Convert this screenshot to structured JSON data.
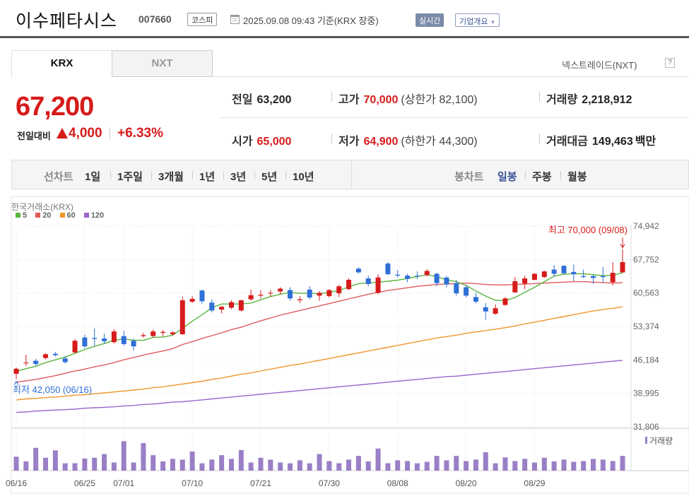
{
  "header": {
    "company": "이수페타시스",
    "code": "007660",
    "market": "코스피",
    "datetime": "2025.09.08 09:43  기준(KRX 장중)",
    "realtime": "실시간",
    "corp_info": "기업개요"
  },
  "tabs": {
    "krx": "KRX",
    "nxt": "NXT"
  },
  "nxt_link": "넥스트레이드(NXT)",
  "help": "?",
  "price": {
    "current": "67,200",
    "change_label": "전일대비",
    "change": "4,000",
    "change_pct": "+6.33%"
  },
  "stats": {
    "prev_label": "전일",
    "prev": "63,200",
    "high_label": "고가",
    "high": "70,000",
    "upper_limit": "(상한가 82,100)",
    "volume_label": "거래량",
    "volume": "2,218,912",
    "open_label": "시가",
    "open": "65,000",
    "low_label": "저가",
    "low": "64,900",
    "lower_limit": "(하한가 44,300)",
    "amount_label": "거래대금",
    "amount": "149,463",
    "amount_unit": "백만"
  },
  "period": {
    "line_label": "선차트",
    "line_items": [
      "1일",
      "1주일",
      "3개월",
      "1년",
      "3년",
      "5년",
      "10년"
    ],
    "candle_label": "봉차트",
    "candle_items": [
      "일봉",
      "주봉",
      "월봉"
    ],
    "selected": "일봉"
  },
  "colors": {
    "up": "#d61b1b",
    "down": "#2f6fd6",
    "ma5": "#5ab540",
    "ma20": "#e05a5a",
    "ma60": "#f0952a",
    "ma120": "#9b66cc",
    "volume": "#9a7fc6"
  },
  "chart_data": {
    "type": "candlestick",
    "title": "한국거래소(KRX)",
    "legend": [
      {
        "label": "5",
        "color": "#5ab540"
      },
      {
        "label": "20",
        "color": "#e05a5a"
      },
      {
        "label": "60",
        "color": "#f0952a"
      },
      {
        "label": "120",
        "color": "#9b66cc"
      }
    ],
    "y_ticks": [
      "74,942",
      "67,752",
      "60,563",
      "53,374",
      "46,184",
      "38,995",
      "31,806"
    ],
    "ylim": [
      31806,
      74942
    ],
    "x_tick_labels": [
      {
        "label": "06/16",
        "index": 0
      },
      {
        "label": "06/25",
        "index": 7
      },
      {
        "label": "07/01",
        "index": 11
      },
      {
        "label": "07/10",
        "index": 18
      },
      {
        "label": "07/21",
        "index": 25
      },
      {
        "label": "07/30",
        "index": 32
      },
      {
        "label": "08/08",
        "index": 39
      },
      {
        "label": "08/20",
        "index": 46
      },
      {
        "label": "08/29",
        "index": 53
      }
    ],
    "high_annotation": "최고 70,000 (09/08)",
    "low_annotation": "최저 42,050 (06/16)",
    "volume_label": "거래량",
    "candles": [
      {
        "o": 43200,
        "h": 44500,
        "l": 42050,
        "c": 44300
      },
      {
        "o": 45500,
        "h": 47300,
        "l": 44900,
        "c": 45600
      },
      {
        "o": 46000,
        "h": 46400,
        "l": 44900,
        "c": 45300
      },
      {
        "o": 46600,
        "h": 47600,
        "l": 46300,
        "c": 47400
      },
      {
        "o": 47500,
        "h": 47900,
        "l": 46900,
        "c": 47200
      },
      {
        "o": 46500,
        "h": 47000,
        "l": 45400,
        "c": 45700
      },
      {
        "o": 47800,
        "h": 50700,
        "l": 47500,
        "c": 50300
      },
      {
        "o": 51000,
        "h": 51600,
        "l": 48700,
        "c": 49100
      },
      {
        "o": 50900,
        "h": 52900,
        "l": 49200,
        "c": 50700
      },
      {
        "o": 50800,
        "h": 51800,
        "l": 49600,
        "c": 50200
      },
      {
        "o": 50000,
        "h": 52800,
        "l": 49700,
        "c": 52300
      },
      {
        "o": 51300,
        "h": 52400,
        "l": 49300,
        "c": 49600
      },
      {
        "o": 50300,
        "h": 50800,
        "l": 48200,
        "c": 49100
      },
      {
        "o": 51300,
        "h": 52000,
        "l": 51000,
        "c": 51500
      },
      {
        "o": 51300,
        "h": 52700,
        "l": 51100,
        "c": 52300
      },
      {
        "o": 52000,
        "h": 52600,
        "l": 51300,
        "c": 52200
      },
      {
        "o": 51700,
        "h": 52300,
        "l": 51400,
        "c": 52100
      },
      {
        "o": 51700,
        "h": 59800,
        "l": 51600,
        "c": 59000
      },
      {
        "o": 58700,
        "h": 59900,
        "l": 58400,
        "c": 59300
      },
      {
        "o": 61100,
        "h": 61300,
        "l": 58300,
        "c": 58800
      },
      {
        "o": 58500,
        "h": 59200,
        "l": 56400,
        "c": 56800
      },
      {
        "o": 57000,
        "h": 57800,
        "l": 56200,
        "c": 57600
      },
      {
        "o": 57400,
        "h": 59000,
        "l": 57100,
        "c": 58600
      },
      {
        "o": 56800,
        "h": 59100,
        "l": 56600,
        "c": 59000
      },
      {
        "o": 59200,
        "h": 61300,
        "l": 58900,
        "c": 60100
      },
      {
        "o": 60000,
        "h": 61200,
        "l": 59400,
        "c": 60200
      },
      {
        "o": 60500,
        "h": 61200,
        "l": 59800,
        "c": 60600
      },
      {
        "o": 60900,
        "h": 61800,
        "l": 60200,
        "c": 61500
      },
      {
        "o": 61200,
        "h": 61800,
        "l": 58900,
        "c": 59400
      },
      {
        "o": 59000,
        "h": 59900,
        "l": 58400,
        "c": 59200
      },
      {
        "o": 61300,
        "h": 62000,
        "l": 59200,
        "c": 59600
      },
      {
        "o": 60000,
        "h": 61000,
        "l": 58900,
        "c": 60600
      },
      {
        "o": 59900,
        "h": 61400,
        "l": 59600,
        "c": 61200
      },
      {
        "o": 60500,
        "h": 62300,
        "l": 59700,
        "c": 62000
      },
      {
        "o": 61400,
        "h": 63700,
        "l": 61200,
        "c": 63400
      },
      {
        "o": 65800,
        "h": 66100,
        "l": 64700,
        "c": 65000
      },
      {
        "o": 63700,
        "h": 64300,
        "l": 62000,
        "c": 62500
      },
      {
        "o": 60600,
        "h": 64600,
        "l": 60300,
        "c": 63900
      },
      {
        "o": 66900,
        "h": 67200,
        "l": 64500,
        "c": 64600
      },
      {
        "o": 64500,
        "h": 65500,
        "l": 63900,
        "c": 64300
      },
      {
        "o": 64300,
        "h": 64700,
        "l": 62900,
        "c": 63600
      },
      {
        "o": 64300,
        "h": 65200,
        "l": 63600,
        "c": 64200
      },
      {
        "o": 64400,
        "h": 65700,
        "l": 64100,
        "c": 65300
      },
      {
        "o": 64700,
        "h": 64900,
        "l": 62000,
        "c": 62700
      },
      {
        "o": 63900,
        "h": 64200,
        "l": 61800,
        "c": 62400
      },
      {
        "o": 62700,
        "h": 63400,
        "l": 60000,
        "c": 60500
      },
      {
        "o": 61800,
        "h": 62300,
        "l": 59600,
        "c": 60000
      },
      {
        "o": 59700,
        "h": 60600,
        "l": 58300,
        "c": 58700
      },
      {
        "o": 57500,
        "h": 58400,
        "l": 54800,
        "c": 56600
      },
      {
        "o": 56100,
        "h": 58100,
        "l": 55900,
        "c": 57300
      },
      {
        "o": 58000,
        "h": 59700,
        "l": 57800,
        "c": 59400
      },
      {
        "o": 60700,
        "h": 64000,
        "l": 60600,
        "c": 63100
      },
      {
        "o": 62600,
        "h": 64300,
        "l": 61400,
        "c": 63700
      },
      {
        "o": 63400,
        "h": 64800,
        "l": 63300,
        "c": 64700
      },
      {
        "o": 64000,
        "h": 65400,
        "l": 63800,
        "c": 65200
      },
      {
        "o": 65600,
        "h": 66600,
        "l": 64000,
        "c": 64700
      },
      {
        "o": 66400,
        "h": 66600,
        "l": 64500,
        "c": 64800
      },
      {
        "o": 65100,
        "h": 66700,
        "l": 63100,
        "c": 64600
      },
      {
        "o": 64200,
        "h": 65600,
        "l": 63800,
        "c": 64000
      },
      {
        "o": 64200,
        "h": 64400,
        "l": 62500,
        "c": 63800
      },
      {
        "o": 64200,
        "h": 66200,
        "l": 62700,
        "c": 64000
      },
      {
        "o": 62900,
        "h": 67200,
        "l": 62200,
        "c": 64900
      },
      {
        "o": 65000,
        "h": 70000,
        "l": 64900,
        "c": 67200
      }
    ],
    "ma5": [
      43700,
      44300,
      44800,
      45600,
      46200,
      46800,
      47600,
      48400,
      49100,
      49700,
      50400,
      50700,
      50400,
      50400,
      51000,
      51100,
      51500,
      53000,
      54500,
      55900,
      57400,
      58200,
      58200,
      58200,
      58400,
      59100,
      59800,
      60300,
      60700,
      60500,
      60500,
      60400,
      60700,
      61100,
      61900,
      62600,
      62700,
      62900,
      63100,
      63300,
      63700,
      64100,
      64500,
      64100,
      63400,
      63000,
      62200,
      61000,
      59900,
      59000,
      58900,
      59600,
      60700,
      61800,
      63000,
      64200,
      64600,
      64700,
      64700,
      64500,
      64300,
      64400,
      64900
    ],
    "ma20": [
      41400,
      41700,
      42000,
      42400,
      42800,
      43300,
      43800,
      44200,
      44700,
      45100,
      45600,
      46200,
      46700,
      47200,
      47700,
      48100,
      48600,
      49500,
      50100,
      50800,
      51400,
      52000,
      52700,
      53200,
      53900,
      54600,
      55200,
      55800,
      56300,
      56800,
      57300,
      57800,
      58300,
      58800,
      59300,
      59800,
      60300,
      60700,
      61100,
      61400,
      61700,
      62000,
      62200,
      62400,
      62500,
      62600,
      62700,
      62600,
      62400,
      62300,
      62300,
      62400,
      62500,
      62600,
      62700,
      62800,
      62900,
      63000,
      63000,
      62900,
      62800,
      62700,
      62800
    ],
    "ma60": [
      37600,
      37800,
      37900,
      38100,
      38200,
      38400,
      38600,
      38700,
      38900,
      39100,
      39300,
      39500,
      39700,
      39900,
      40200,
      40400,
      40700,
      41000,
      41300,
      41600,
      42000,
      42300,
      42700,
      43100,
      43400,
      43800,
      44200,
      44600,
      45000,
      45300,
      45700,
      46100,
      46500,
      46900,
      47300,
      47700,
      48100,
      48500,
      48900,
      49300,
      49700,
      50100,
      50500,
      50900,
      51200,
      51500,
      51900,
      52200,
      52500,
      52800,
      53100,
      53500,
      53900,
      54300,
      54700,
      55100,
      55500,
      55900,
      56300,
      56700,
      57000,
      57300,
      57600
    ],
    "ma120": [
      34900,
      35000,
      35200,
      35300,
      35400,
      35500,
      35600,
      35800,
      35900,
      36000,
      36100,
      36300,
      36400,
      36600,
      36700,
      36900,
      37100,
      37200,
      37400,
      37600,
      37800,
      38000,
      38200,
      38400,
      38600,
      38800,
      39000,
      39200,
      39400,
      39600,
      39800,
      40000,
      40200,
      40400,
      40600,
      40800,
      41000,
      41200,
      41400,
      41600,
      41800,
      42000,
      42200,
      42400,
      42600,
      42700,
      42900,
      43100,
      43300,
      43500,
      43700,
      43900,
      44100,
      44300,
      44500,
      44700,
      44900,
      45100,
      45300,
      45500,
      45700,
      45900,
      46100
    ],
    "volume": [
      0.38,
      0.25,
      0.62,
      0.35,
      0.55,
      0.2,
      0.2,
      0.33,
      0.35,
      0.45,
      0.22,
      0.8,
      0.22,
      0.75,
      0.42,
      0.25,
      0.32,
      0.3,
      0.52,
      0.2,
      0.3,
      0.42,
      0.32,
      0.56,
      0.22,
      0.35,
      0.3,
      0.22,
      0.2,
      0.28,
      0.2,
      0.45,
      0.26,
      0.2,
      0.3,
      0.4,
      0.25,
      0.6,
      0.2,
      0.28,
      0.26,
      0.2,
      0.24,
      0.4,
      0.28,
      0.4,
      0.26,
      0.3,
      0.5,
      0.2,
      0.36,
      0.26,
      0.32,
      0.22,
      0.35,
      0.25,
      0.3,
      0.24,
      0.26,
      0.32,
      0.3,
      0.26,
      0.4
    ]
  }
}
